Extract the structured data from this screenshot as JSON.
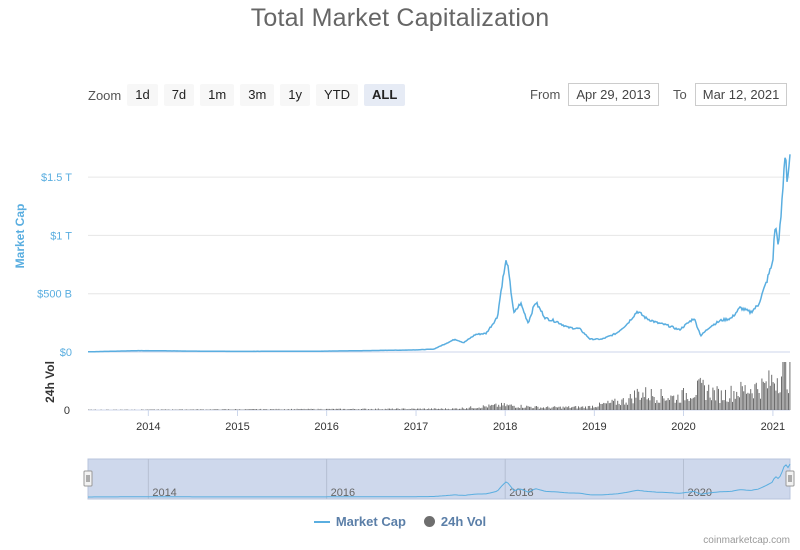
{
  "title": "Total Market Capitalization",
  "zoom": {
    "label": "Zoom",
    "buttons": [
      "1d",
      "7d",
      "1m",
      "3m",
      "1y",
      "YTD",
      "ALL"
    ],
    "active": "ALL"
  },
  "range": {
    "from_label": "From",
    "from_value": "Apr 29, 2013",
    "to_label": "To",
    "to_value": "Mar 12, 2021"
  },
  "legend": {
    "market_cap": "Market Cap",
    "volume": "24h Vol"
  },
  "credits": "coinmarketcap.com",
  "colors": {
    "market_cap": "#5aaee0",
    "volume": "#6e6e6e",
    "navigator_fill": "#c9d4ea"
  },
  "chart_data": [
    {
      "type": "line",
      "title": "Total Market Capitalization",
      "ylabel": "Market Cap",
      "y_unit": "USD",
      "ylim": [
        0,
        1750000000000
      ],
      "yticks": [
        0,
        500000000000,
        1000000000000,
        1500000000000
      ],
      "ytick_labels": [
        "$0",
        "$500 B",
        "$1 T",
        "$1.5 T"
      ],
      "xlim": [
        "2013-04-29",
        "2021-03-12"
      ],
      "xtick_labels": [
        "2014",
        "2015",
        "2016",
        "2017",
        "2018",
        "2019",
        "2020",
        "2021"
      ],
      "grid": true,
      "series": [
        {
          "name": "Market Cap",
          "x": [
            "2013-04-29",
            "2013-11-30",
            "2014-06-01",
            "2015-01-01",
            "2015-12-01",
            "2016-06-15",
            "2017-01-01",
            "2017-03-15",
            "2017-06-10",
            "2017-07-15",
            "2017-09-01",
            "2017-10-15",
            "2017-11-30",
            "2017-12-20",
            "2018-01-07",
            "2018-02-06",
            "2018-03-05",
            "2018-04-05",
            "2018-05-05",
            "2018-06-15",
            "2018-08-01",
            "2018-09-15",
            "2018-11-01",
            "2018-12-15",
            "2019-02-01",
            "2019-04-01",
            "2019-05-15",
            "2019-06-26",
            "2019-08-01",
            "2019-09-15",
            "2019-10-25",
            "2019-12-15",
            "2020-02-13",
            "2020-03-12",
            "2020-04-20",
            "2020-06-01",
            "2020-07-15",
            "2020-08-20",
            "2020-10-01",
            "2020-11-01",
            "2020-12-01",
            "2020-12-31",
            "2021-01-10",
            "2021-01-25",
            "2021-02-08",
            "2021-02-21",
            "2021-03-01",
            "2021-03-12"
          ],
          "values": [
            1500000000.0,
            12000000000.0,
            8000000000.0,
            5000000000.0,
            7000000000.0,
            12000000000.0,
            18000000000.0,
            25000000000.0,
            110000000000.0,
            80000000000.0,
            150000000000.0,
            160000000000.0,
            300000000000.0,
            600000000000.0,
            800000000000.0,
            330000000000.0,
            420000000000.0,
            250000000000.0,
            430000000000.0,
            290000000000.0,
            260000000000.0,
            210000000000.0,
            200000000000.0,
            110000000000.0,
            110000000000.0,
            160000000000.0,
            240000000000.0,
            350000000000.0,
            290000000000.0,
            250000000000.0,
            230000000000.0,
            190000000000.0,
            290000000000.0,
            140000000000.0,
            220000000000.0,
            270000000000.0,
            290000000000.0,
            380000000000.0,
            340000000000.0,
            400000000000.0,
            570000000000.0,
            770000000000.0,
            1080000000000.0,
            920000000000.0,
            1300000000000.0,
            1750000000000.0,
            1450000000000.0,
            1700000000000.0
          ]
        }
      ]
    },
    {
      "type": "bar",
      "ylabel": "24h Vol",
      "yticks": [
        0
      ],
      "ytick_labels": [
        "0"
      ],
      "series": [
        {
          "name": "24h Vol",
          "x": [
            "2013-04-29",
            "2017-06-01",
            "2017-12-20",
            "2018-06-01",
            "2018-12-01",
            "2019-05-15",
            "2019-06-26",
            "2019-12-01",
            "2020-03-12",
            "2020-06-01",
            "2020-08-20",
            "2020-12-01",
            "2021-01-15",
            "2021-02-21",
            "2021-03-12"
          ],
          "values": [
            0.1,
            0.5,
            2,
            1,
            1.2,
            4,
            7,
            5,
            9,
            6,
            8,
            10,
            14,
            16,
            13
          ]
        }
      ]
    }
  ],
  "navigator": {
    "labels": [
      "2014",
      "2016",
      "2018",
      "2020"
    ]
  }
}
